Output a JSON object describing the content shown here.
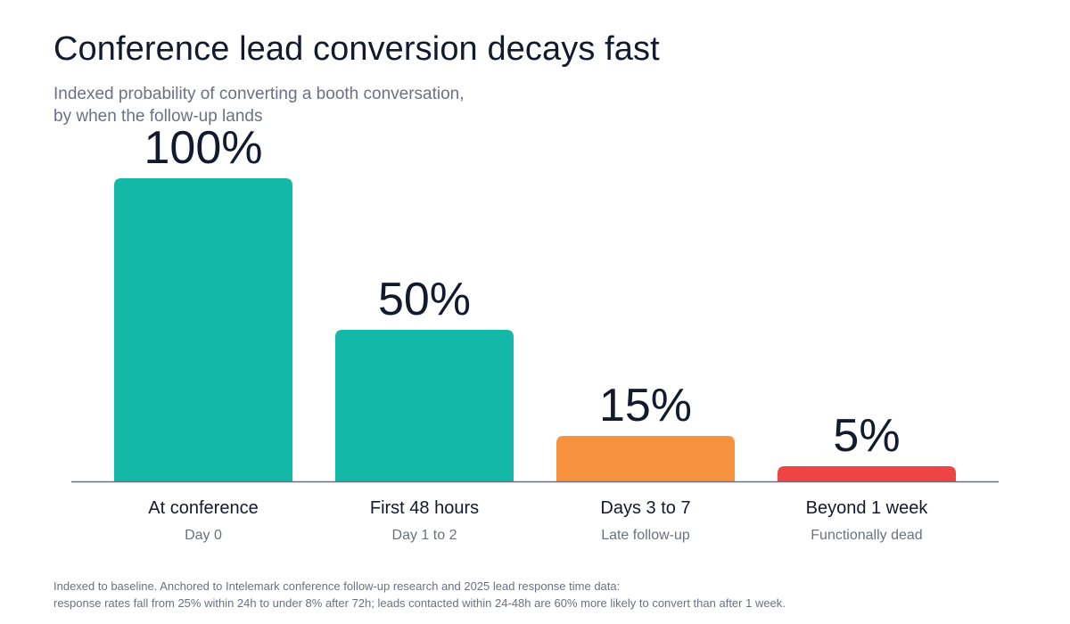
{
  "title": "Conference lead conversion decays fast",
  "subtitle_lines": [
    "Indexed probability of converting a booth conversation,",
    "by when the follow-up lands"
  ],
  "colors": {
    "teal": "#14b8a6",
    "orange": "#f7933e",
    "red": "#ee4444",
    "axis": "#6b7180",
    "value_text": "#141a2e",
    "category_text": "#141a2e",
    "sublabel_text": "#6b7180"
  },
  "chart_data": {
    "type": "bar",
    "categories": [
      "At conference",
      "First 48 hours",
      "Days 3 to 7",
      "Beyond 1 week"
    ],
    "sublabels": [
      "Day 0",
      "Day 1 to 2",
      "Late follow-up",
      "Functionally dead"
    ],
    "values": [
      100,
      50,
      15,
      5
    ],
    "value_labels": [
      "100%",
      "50%",
      "15%",
      "5%"
    ],
    "bar_colors": [
      "#14b8a6",
      "#14b8a6",
      "#f7933e",
      "#ee4444"
    ],
    "ylim": [
      0,
      100
    ],
    "grid": false,
    "legend": "none"
  },
  "footnote_lines": [
    "Indexed to baseline. Anchored to Intelemark conference follow-up research and 2025 lead response time data:",
    "response rates fall from 25% within 24h to under 8% after 72h; leads contacted within 24-48h are 60% more likely to convert than after 1 week."
  ]
}
